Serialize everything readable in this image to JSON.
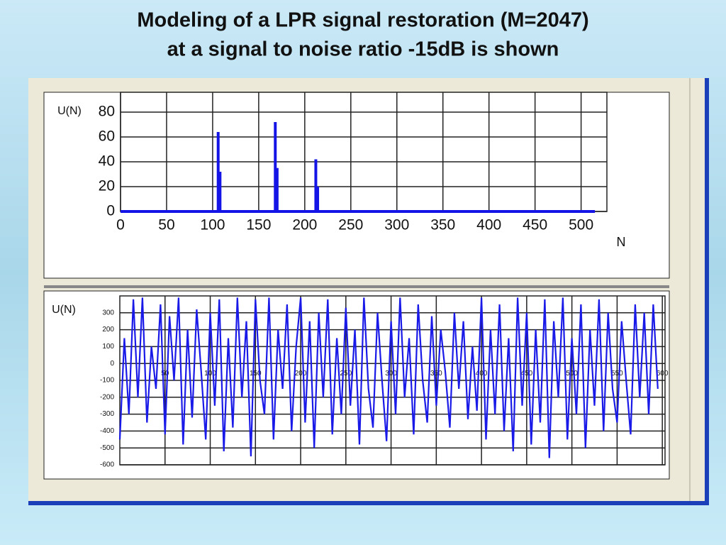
{
  "title_lines": [
    "Modeling of a LPR signal restoration (M=2047)",
    "at a  signal to noise ratio -15dB is shown"
  ],
  "chart_data": [
    {
      "type": "bar",
      "ylabel": "U(N)",
      "xlabel": "N",
      "color": "#1414e6",
      "grid": true,
      "x": [
        106,
        108,
        168,
        170,
        212,
        214
      ],
      "values": [
        64,
        32,
        72,
        35,
        42,
        20
      ],
      "xlim": [
        0,
        528
      ],
      "ylim": [
        0,
        96
      ],
      "xticks": [
        0,
        50,
        100,
        150,
        200,
        250,
        300,
        350,
        400,
        450,
        500
      ],
      "yticks": [
        0,
        20,
        40,
        60,
        80
      ]
    },
    {
      "type": "line",
      "ylabel": "U(N)",
      "color": "#1a1ae8",
      "grid": true,
      "x": [
        0,
        5,
        10,
        15,
        20,
        25,
        30,
        35,
        40,
        45,
        50,
        55,
        60,
        65,
        70,
        75,
        80,
        85,
        90,
        95,
        100,
        105,
        110,
        115,
        120,
        125,
        130,
        135,
        140,
        145,
        150,
        155,
        160,
        165,
        170,
        175,
        180,
        185,
        190,
        195,
        200,
        205,
        210,
        215,
        220,
        225,
        230,
        235,
        240,
        245,
        250,
        255,
        260,
        265,
        270,
        275,
        280,
        285,
        290,
        295,
        300,
        305,
        310,
        315,
        320,
        325,
        330,
        335,
        340,
        345,
        350,
        355,
        360,
        365,
        370,
        375,
        380,
        385,
        390,
        395,
        400,
        405,
        410,
        415,
        420,
        425,
        430,
        435,
        440,
        445,
        450,
        455,
        460,
        465,
        470,
        475,
        480,
        485,
        490,
        495,
        500,
        505,
        510,
        515,
        520,
        525,
        530,
        535,
        540,
        545,
        550,
        555,
        560,
        565,
        570,
        575,
        580,
        585,
        590,
        595
      ],
      "values": [
        -450,
        150,
        -300,
        380,
        -200,
        390,
        -350,
        100,
        -150,
        350,
        -420,
        280,
        -100,
        390,
        -480,
        200,
        -320,
        320,
        -50,
        -450,
        300,
        -250,
        380,
        -520,
        150,
        -380,
        390,
        -200,
        250,
        -550,
        380,
        -100,
        -300,
        390,
        -450,
        200,
        -150,
        350,
        -400,
        100,
        390,
        -350,
        250,
        -500,
        300,
        -200,
        380,
        -420,
        150,
        -300,
        330,
        -250,
        200,
        -480,
        390,
        -150,
        -380,
        300,
        -100,
        -460,
        250,
        -300,
        390,
        -200,
        150,
        -420,
        350,
        -100,
        -350,
        280,
        -250,
        200,
        -50,
        -380,
        300,
        -150,
        250,
        -330,
        100,
        -280,
        390,
        -450,
        200,
        -300,
        350,
        -400,
        150,
        -520,
        390,
        -250,
        300,
        -480,
        200,
        -350,
        380,
        -560,
        250,
        -200,
        390,
        -450,
        150,
        -300,
        350,
        -500,
        200,
        -250,
        380,
        -400,
        300,
        -150,
        -350,
        250,
        -100,
        -420,
        350,
        -200,
        300,
        -300,
        350,
        -150
      ],
      "xlim": [
        0,
        603
      ],
      "ylim": [
        -600,
        400
      ],
      "xticks": [
        50,
        100,
        150,
        200,
        250,
        300,
        350,
        400,
        450,
        500,
        550,
        600
      ],
      "yticks": [
        -600,
        -500,
        -400,
        -300,
        -200,
        -100,
        0,
        100,
        200,
        300
      ]
    }
  ]
}
